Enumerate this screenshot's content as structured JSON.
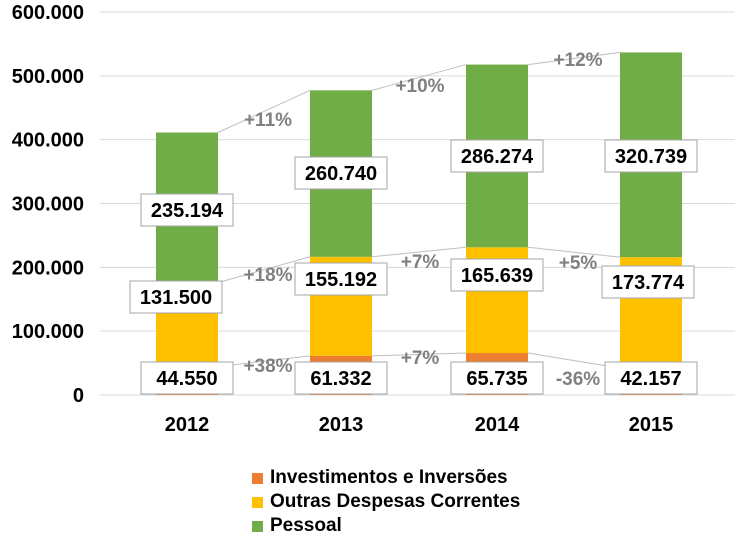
{
  "colors": {
    "investimentos": "#ED7D31",
    "outras": "#FFC000",
    "pessoal": "#70AD47",
    "grid": "#D9D9D9",
    "growth_text": "#808080"
  },
  "legend": {
    "items": [
      {
        "label": "Investimentos e Inversões",
        "color": "#ED7D31"
      },
      {
        "label": "Outras Despesas  Correntes",
        "color": "#FFC000"
      },
      {
        "label": "Pessoal",
        "color": "#70AD47"
      }
    ]
  },
  "chart_data": {
    "type": "bar",
    "stacked": true,
    "categories": [
      "2012",
      "2013",
      "2014",
      "2015"
    ],
    "ylim": [
      0,
      600000
    ],
    "yticks": [
      0,
      100000,
      200000,
      300000,
      400000,
      500000,
      600000
    ],
    "ytick_labels": [
      "0",
      "100.000",
      "200.000",
      "300.000",
      "400.000",
      "500.000",
      "600.000"
    ],
    "grid": true,
    "legend_position": "bottom",
    "series": [
      {
        "name": "Investimentos e Inversões",
        "values": [
          44550,
          61332,
          65735,
          42157
        ],
        "labels": [
          "44.550",
          "61.332",
          "65.735",
          "42.157"
        ],
        "color": "#ED7D31"
      },
      {
        "name": "Outras Despesas  Correntes",
        "values": [
          131500,
          155192,
          165639,
          173774
        ],
        "labels": [
          "131.500",
          "155.192",
          "165.639",
          "173.774"
        ],
        "color": "#FFC000"
      },
      {
        "name": "Pessoal",
        "values": [
          235194,
          260740,
          286274,
          320739
        ],
        "labels": [
          "235.194",
          "260.740",
          "286.274",
          "320.739"
        ],
        "color": "#70AD47"
      }
    ],
    "growth_annotations": {
      "Investimentos e Inversões": [
        "+38%",
        "+7%",
        "-36%"
      ],
      "Outras Despesas  Correntes": [
        "+18%",
        "+7%",
        "+5%"
      ],
      "Pessoal": [
        "+11%",
        "+10%",
        "+12%"
      ]
    }
  }
}
